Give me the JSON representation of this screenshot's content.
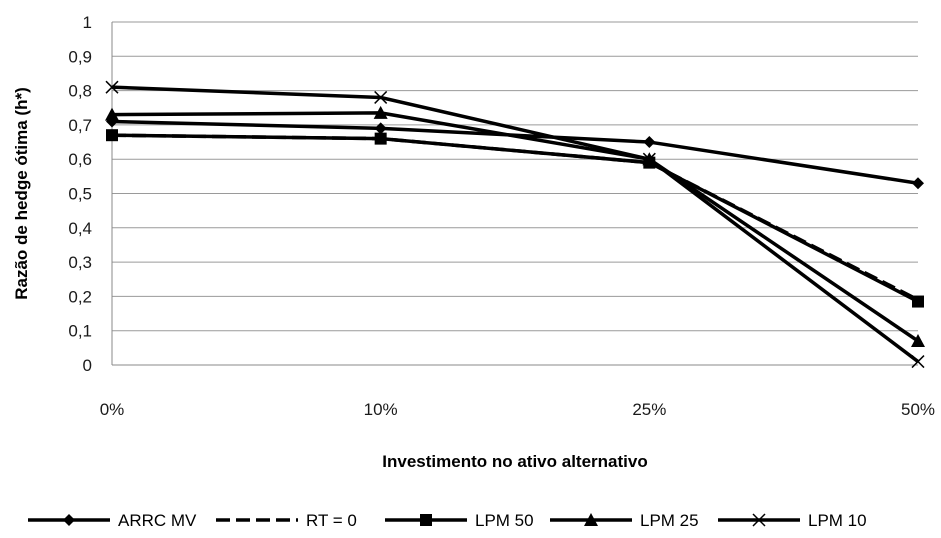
{
  "chart_data": {
    "type": "line",
    "categories": [
      "0%",
      "10%",
      "25%",
      "50%"
    ],
    "xlabel": "Investimento no ativo alternativo",
    "ylabel": "Razão de hedge ótima (h*)",
    "ylim": [
      0,
      1
    ],
    "yticks": [
      "0",
      "0,1",
      "0,2",
      "0,3",
      "0,4",
      "0,5",
      "0,6",
      "0,7",
      "0,8",
      "0,9",
      "1"
    ],
    "grid": true,
    "legend_position": "bottom",
    "series": [
      {
        "name": "ARRC MV",
        "values": [
          0.71,
          0.69,
          0.65,
          0.53
        ],
        "marker": "diamond",
        "dash": "solid",
        "color": "#000000"
      },
      {
        "name": "RT = 0",
        "values": [
          0.67,
          0.66,
          0.59,
          0.19
        ],
        "marker": "none",
        "dash": "dashed",
        "color": "#000000"
      },
      {
        "name": "LPM 50",
        "values": [
          0.67,
          0.66,
          0.59,
          0.185
        ],
        "marker": "square",
        "dash": "solid",
        "color": "#000000"
      },
      {
        "name": "LPM 25",
        "values": [
          0.73,
          0.735,
          0.6,
          0.07
        ],
        "marker": "triangle",
        "dash": "solid",
        "color": "#000000"
      },
      {
        "name": "LPM 10",
        "values": [
          0.81,
          0.78,
          0.6,
          0.01
        ],
        "marker": "x",
        "dash": "solid",
        "color": "#000000"
      }
    ]
  }
}
